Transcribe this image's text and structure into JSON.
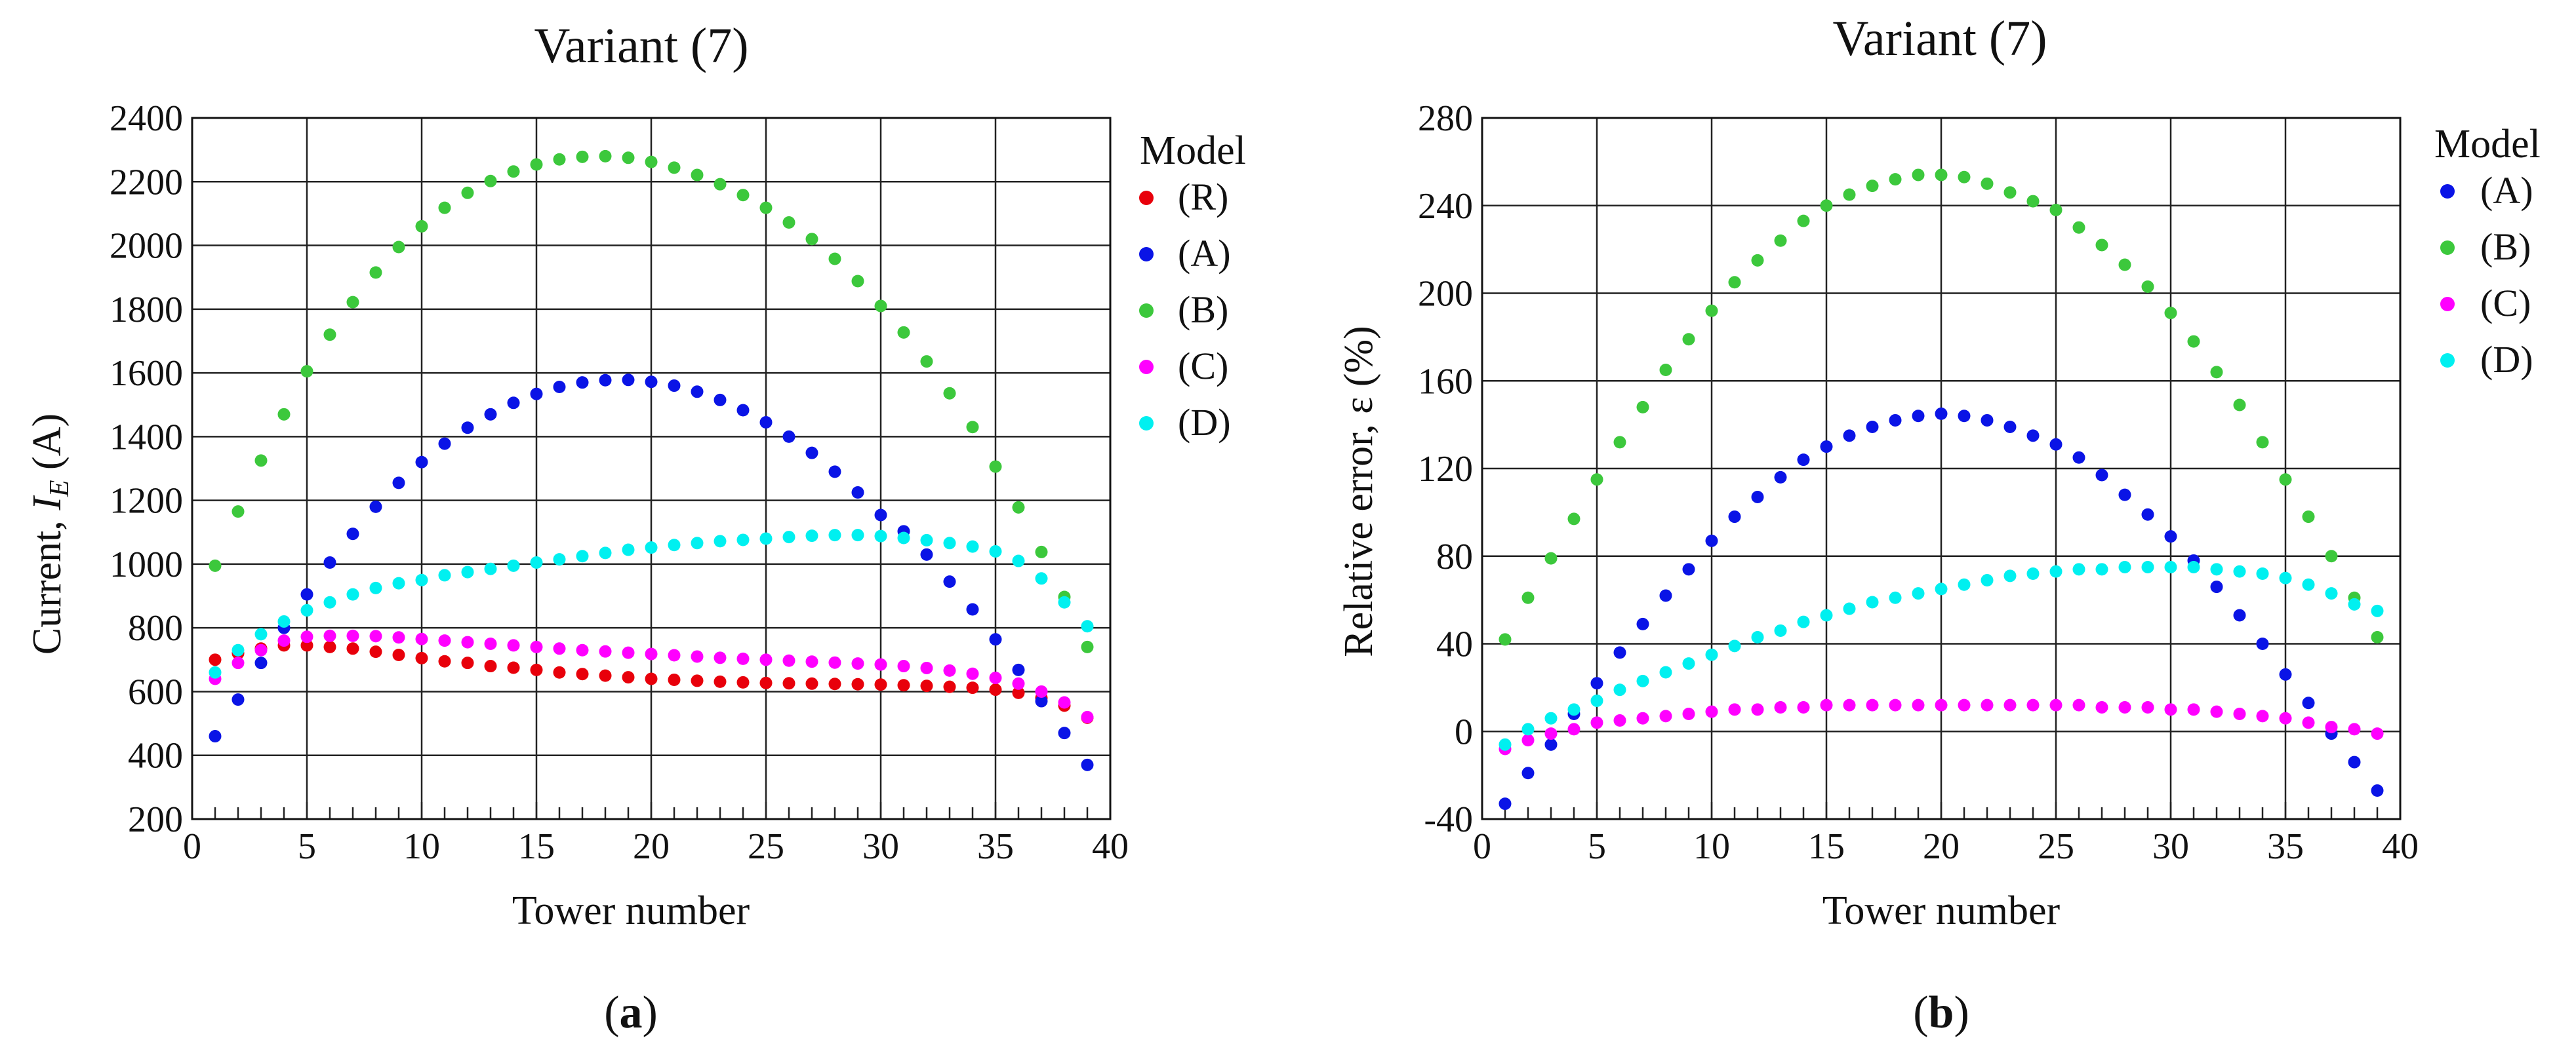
{
  "chart_data": [
    {
      "panel_label_prefix": "(",
      "panel_label_letter": "a",
      "panel_label_suffix": ")",
      "type": "scatter",
      "title": "Variant (7)",
      "xlabel": "Tower number",
      "ylabel_prefix": "Current, ",
      "ylabel_var": "I",
      "ylabel_sub": "E",
      "ylabel_suffix": " (A)",
      "xlim": [
        0,
        40
      ],
      "ylim": [
        200,
        2400
      ],
      "xticks": [
        0,
        5,
        10,
        15,
        20,
        25,
        30,
        35,
        40
      ],
      "yticks": [
        200,
        400,
        600,
        800,
        1000,
        1200,
        1400,
        1600,
        1800,
        2000,
        2200,
        2400
      ],
      "grid": true,
      "legend_title": "Model",
      "legend_position": "right",
      "x": [
        1,
        2,
        3,
        4,
        5,
        6,
        7,
        8,
        9,
        10,
        11,
        12,
        13,
        14,
        15,
        16,
        17,
        18,
        19,
        20,
        21,
        22,
        23,
        24,
        25,
        26,
        27,
        28,
        29,
        30,
        31,
        32,
        33,
        34,
        35,
        36,
        37,
        38,
        39
      ],
      "series": [
        {
          "name": "(R)",
          "color": "#e8000b",
          "values": [
            700,
            720,
            735,
            745,
            745,
            740,
            735,
            725,
            715,
            705,
            695,
            690,
            680,
            675,
            668,
            660,
            655,
            650,
            645,
            640,
            637,
            634,
            631,
            629,
            627,
            626,
            625,
            624,
            623,
            622,
            620,
            618,
            615,
            612,
            606,
            596,
            580,
            556,
            518
          ]
        },
        {
          "name": "(A)",
          "color": "#0a14e6",
          "values": [
            460,
            575,
            690,
            800,
            905,
            1005,
            1095,
            1180,
            1255,
            1320,
            1378,
            1428,
            1470,
            1506,
            1534,
            1556,
            1570,
            1577,
            1578,
            1572,
            1560,
            1541,
            1515,
            1483,
            1445,
            1400,
            1349,
            1290,
            1225,
            1154,
            1103,
            1030,
            945,
            858,
            764,
            668,
            570,
            470,
            370
          ]
        },
        {
          "name": "(B)",
          "color": "#3cc83c",
          "values": [
            995,
            1165,
            1325,
            1470,
            1605,
            1720,
            1822,
            1915,
            1995,
            2060,
            2118,
            2165,
            2202,
            2232,
            2254,
            2270,
            2278,
            2280,
            2275,
            2262,
            2244,
            2221,
            2192,
            2158,
            2118,
            2072,
            2020,
            1958,
            1888,
            1810,
            1727,
            1636,
            1536,
            1430,
            1306,
            1178,
            1038,
            897,
            740
          ]
        },
        {
          "name": "(C)",
          "color": "#ff00ff",
          "values": [
            640,
            690,
            730,
            760,
            772,
            775,
            775,
            774,
            770,
            765,
            760,
            755,
            750,
            745,
            740,
            735,
            730,
            726,
            722,
            718,
            714,
            710,
            706,
            703,
            700,
            697,
            694,
            691,
            688,
            685,
            680,
            674,
            666,
            656,
            643,
            625,
            600,
            566,
            520
          ]
        },
        {
          "name": "(D)",
          "color": "#00f0f0",
          "values": [
            660,
            730,
            780,
            820,
            855,
            880,
            905,
            925,
            940,
            950,
            965,
            975,
            985,
            995,
            1005,
            1015,
            1025,
            1035,
            1045,
            1052,
            1060,
            1066,
            1072,
            1076,
            1080,
            1085,
            1089,
            1091,
            1091,
            1088,
            1082,
            1075,
            1066,
            1055,
            1040,
            1010,
            955,
            880,
            805
          ]
        }
      ]
    },
    {
      "panel_label_prefix": "(",
      "panel_label_letter": "b",
      "panel_label_suffix": ")",
      "type": "scatter",
      "title": "Variant (7)",
      "xlabel": "Tower number",
      "ylabel": "Relative error, ε (%)",
      "xlim": [
        0,
        40
      ],
      "ylim": [
        -40,
        280
      ],
      "xticks": [
        0,
        5,
        10,
        15,
        20,
        25,
        30,
        35,
        40
      ],
      "yticks": [
        -40,
        0,
        40,
        80,
        120,
        160,
        200,
        240,
        280
      ],
      "grid": true,
      "legend_title": "Model",
      "legend_position": "right",
      "x": [
        1,
        2,
        3,
        4,
        5,
        6,
        7,
        8,
        9,
        10,
        11,
        12,
        13,
        14,
        15,
        16,
        17,
        18,
        19,
        20,
        21,
        22,
        23,
        24,
        25,
        26,
        27,
        28,
        29,
        30,
        31,
        32,
        33,
        34,
        35,
        36,
        37,
        38,
        39
      ],
      "series": [
        {
          "name": "(A)",
          "color": "#0a14e6",
          "values": [
            -33,
            -19,
            -6,
            8,
            22,
            36,
            49,
            62,
            74,
            87,
            98,
            107,
            116,
            124,
            130,
            135,
            139,
            142,
            144,
            145,
            144,
            142,
            139,
            135,
            131,
            125,
            117,
            108,
            99,
            89,
            78,
            66,
            53,
            40,
            26,
            13,
            -1,
            -14,
            -27
          ]
        },
        {
          "name": "(B)",
          "color": "#3cc83c",
          "values": [
            42,
            61,
            79,
            97,
            115,
            132,
            148,
            165,
            179,
            192,
            205,
            215,
            224,
            233,
            240,
            245,
            249,
            252,
            254,
            254,
            253,
            250,
            246,
            242,
            238,
            230,
            222,
            213,
            203,
            191,
            178,
            164,
            149,
            132,
            115,
            98,
            80,
            61,
            43
          ]
        },
        {
          "name": "(C)",
          "color": "#ff00ff",
          "values": [
            -8,
            -4,
            -1,
            1,
            4,
            5,
            6,
            7,
            8,
            9,
            10,
            10,
            11,
            11,
            12,
            12,
            12,
            12,
            12,
            12,
            12,
            12,
            12,
            12,
            12,
            12,
            11,
            11,
            11,
            10,
            10,
            9,
            8,
            7,
            6,
            4,
            2,
            1,
            -1
          ]
        },
        {
          "name": "(D)",
          "color": "#00f0f0",
          "values": [
            -6,
            1,
            6,
            10,
            14,
            19,
            23,
            27,
            31,
            35,
            39,
            43,
            46,
            50,
            53,
            56,
            59,
            61,
            63,
            65,
            67,
            69,
            71,
            72,
            73,
            74,
            74,
            75,
            75,
            75,
            75,
            74,
            73,
            72,
            70,
            67,
            63,
            58,
            55
          ]
        }
      ]
    }
  ]
}
